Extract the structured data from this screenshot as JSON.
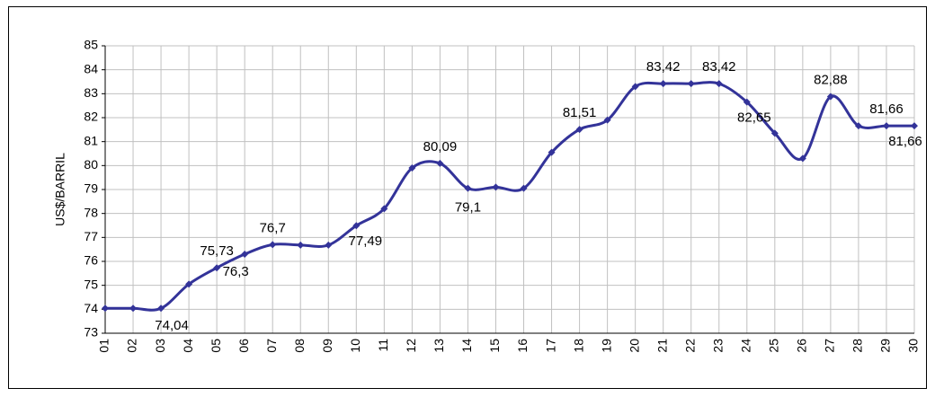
{
  "chart_data": {
    "type": "line",
    "y_label": "US$/BARRIL",
    "categories": [
      "01",
      "02",
      "03",
      "04",
      "05",
      "06",
      "07",
      "08",
      "09",
      "10",
      "11",
      "12",
      "13",
      "14",
      "15",
      "16",
      "17",
      "18",
      "19",
      "20",
      "21",
      "22",
      "23",
      "24",
      "25",
      "26",
      "27",
      "28",
      "29",
      "30"
    ],
    "series": [
      {
        "name": "US$/BARRIL",
        "color": "#333399",
        "values": [
          74.04,
          74.04,
          74.04,
          75.05,
          75.73,
          76.3,
          76.7,
          76.68,
          76.68,
          77.49,
          78.2,
          79.9,
          80.09,
          79.05,
          79.1,
          79.05,
          80.55,
          81.51,
          81.9,
          83.3,
          83.42,
          83.42,
          83.42,
          82.65,
          81.35,
          80.3,
          82.88,
          81.66,
          81.66,
          81.66
        ],
        "value_labels": [
          null,
          null,
          "74,04",
          null,
          "75,73",
          "76,3",
          "76,7",
          null,
          null,
          "77,49",
          null,
          null,
          "80,09",
          "79,1",
          null,
          null,
          null,
          "81,51",
          null,
          null,
          "83,42",
          null,
          "83,42",
          "82,65",
          null,
          null,
          "82,88",
          null,
          "81,66",
          "81,66"
        ]
      }
    ],
    "ylim": [
      73,
      85
    ],
    "yticks": [
      73,
      74,
      75,
      76,
      77,
      78,
      79,
      80,
      81,
      82,
      83,
      84,
      85
    ],
    "grid": true
  }
}
